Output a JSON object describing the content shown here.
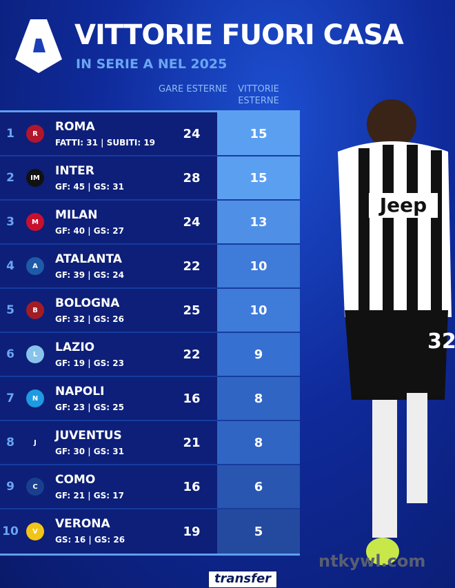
{
  "header": {
    "title": "VITTORIE FUORI CASA",
    "subtitle": "IN SERIE A NEL 2025",
    "col_gare": "GARE ESTERNE",
    "col_vittorie": "VITTORIE ESTERNE"
  },
  "rows": [
    {
      "rank": "1",
      "team": "ROMA",
      "stats": "FATTI: 31 | SUBITI: 19",
      "gare": "24",
      "vittorie": "15",
      "badge_color": "#b3162c",
      "badge_text": "R",
      "vitt_color": "#5b9ff0"
    },
    {
      "rank": "2",
      "team": "INTER",
      "stats": "GF: 45 | GS: 31",
      "gare": "28",
      "vittorie": "15",
      "badge_color": "#111111",
      "badge_text": "IM",
      "vitt_color": "#5b9ff0"
    },
    {
      "rank": "3",
      "team": "MILAN",
      "stats": "GF: 40 | GS: 27",
      "gare": "24",
      "vittorie": "13",
      "badge_color": "#c8102e",
      "badge_text": "M",
      "vitt_color": "#4f8fe6"
    },
    {
      "rank": "4",
      "team": "ATALANTA",
      "stats": "GF: 39 | GS: 24",
      "gare": "22",
      "vittorie": "10",
      "badge_color": "#1e5aa8",
      "badge_text": "A",
      "vitt_color": "#3f7bd8"
    },
    {
      "rank": "5",
      "team": "BOLOGNA",
      "stats": "GF: 32 | GS: 26",
      "gare": "25",
      "vittorie": "10",
      "badge_color": "#a21c26",
      "badge_text": "B",
      "vitt_color": "#3f7bd8"
    },
    {
      "rank": "6",
      "team": "LAZIO",
      "stats": "GF: 19 | GS: 23",
      "gare": "22",
      "vittorie": "9",
      "badge_color": "#87c3ea",
      "badge_text": "L",
      "vitt_color": "#3670d0"
    },
    {
      "rank": "7",
      "team": "NAPOLI",
      "stats": "GF: 23 | GS: 25",
      "gare": "16",
      "vittorie": "8",
      "badge_color": "#1e9be0",
      "badge_text": "N",
      "vitt_color": "#3065c4"
    },
    {
      "rank": "8",
      "team": "JUVENTUS",
      "stats": "GF: 30 | GS: 31",
      "gare": "21",
      "vittorie": "8",
      "badge_color": "#0d1f78",
      "badge_text": "J",
      "vitt_color": "#3065c4"
    },
    {
      "rank": "9",
      "team": "COMO",
      "stats": "GF: 21 | GS: 17",
      "gare": "16",
      "vittorie": "6",
      "badge_color": "#1b3f8f",
      "badge_text": "C",
      "vitt_color": "#2856b0"
    },
    {
      "rank": "10",
      "team": "VERONA",
      "stats": "GS: 16 | GS: 26",
      "gare": "19",
      "vittorie": "5",
      "badge_color": "#f2c418",
      "badge_text": "V",
      "vitt_color": "#234a9e"
    }
  ],
  "player": {
    "shirt_sponsor": "Jeep",
    "number": "32"
  },
  "watermark": "ntkywl.com",
  "footer_logo": "transfer"
}
